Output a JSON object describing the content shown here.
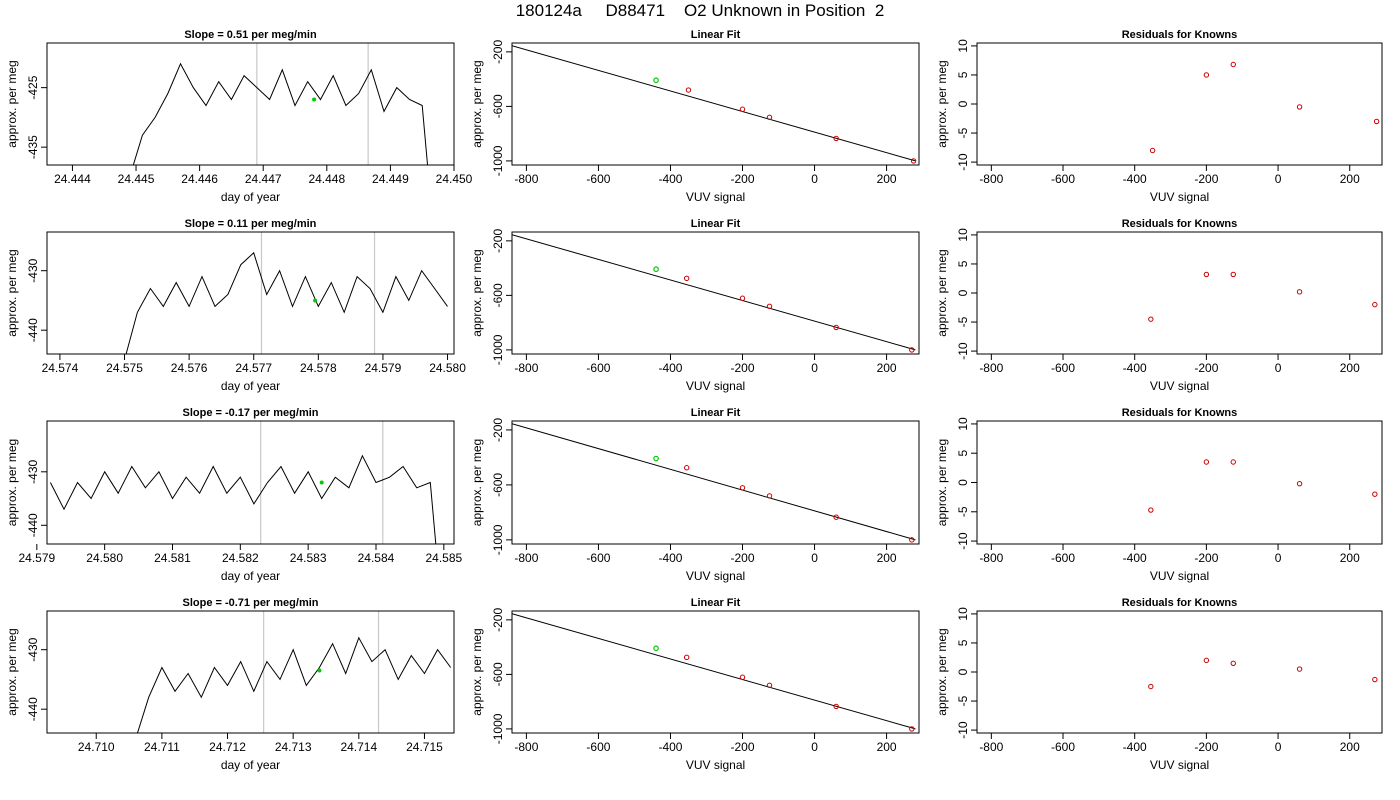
{
  "page": {
    "title": "180124a     D88471    O2 Unknown in Position  2"
  },
  "colors": {
    "line": "#000000",
    "frame": "#000000",
    "vertical_marker": "#c8c8c8",
    "known_points": "#cc0000",
    "unknown_point": "#00cc00"
  },
  "chart_data": [
    {
      "type": "line",
      "title": "Slope =  0.51  per meg/min",
      "xlabel": "day of year",
      "ylabel": "approx. per meg",
      "xlim": [
        24.4436,
        24.45
      ],
      "ylim": [
        -438.0,
        -417.5
      ],
      "xticks": [
        "24.444",
        "24.445",
        "24.446",
        "24.447",
        "24.448",
        "24.449",
        "24.450"
      ],
      "yticks": [
        "-425",
        "-435"
      ],
      "vlines": [
        24.4469,
        24.44865
      ],
      "marker": {
        "x": 24.4478,
        "y": -427
      },
      "x": [
        24.4449,
        24.4451,
        24.4453,
        24.4455,
        24.4457,
        24.4459,
        24.4461,
        24.4463,
        24.4465,
        24.4467,
        24.4469,
        24.4471,
        24.4473,
        24.4475,
        24.4477,
        24.4479,
        24.4481,
        24.4483,
        24.4485,
        24.4487,
        24.4489,
        24.4491,
        24.4493,
        24.4495,
        24.4496
      ],
      "y": [
        -440,
        -433,
        -430,
        -426,
        -421,
        -425,
        -428,
        -424,
        -427,
        -423,
        -425,
        -427,
        -422,
        -428,
        -424,
        -427,
        -423,
        -428,
        -426,
        -422,
        -429,
        -425,
        -427,
        -428,
        -440
      ]
    },
    {
      "type": "scatter-with-fit",
      "title": "Linear Fit",
      "xlabel": "VUV signal",
      "ylabel": "approx. per meg",
      "xlim": [
        -840,
        290
      ],
      "ylim": [
        -1030,
        -135
      ],
      "xticks": [
        -800,
        -600,
        -400,
        -200,
        0,
        200
      ],
      "yticks": [
        -200,
        -600,
        -1000
      ],
      "fit": {
        "x": [
          -840,
          280
        ],
        "y": [
          -155,
          -1000
        ]
      },
      "known_points": [
        {
          "x": -350,
          "y": -480
        },
        {
          "x": -200,
          "y": -621
        },
        {
          "x": -125,
          "y": -680
        },
        {
          "x": 60,
          "y": -835
        },
        {
          "x": 275,
          "y": -1000
        }
      ],
      "unknown_point": {
        "x": -440,
        "y": -408
      }
    },
    {
      "type": "scatter",
      "title": "Residuals for Knowns",
      "xlabel": "VUV signal",
      "ylabel": "approx. per meg",
      "xlim": [
        -840,
        290
      ],
      "ylim": [
        -10.5,
        10.5
      ],
      "xticks": [
        -800,
        -600,
        -400,
        -200,
        0,
        200
      ],
      "yticks": [
        -10,
        -5,
        0,
        5,
        10
      ],
      "points": [
        {
          "x": -350,
          "y": -8
        },
        {
          "x": -200,
          "y": 5
        },
        {
          "x": -125,
          "y": 6.8
        },
        {
          "x": 60,
          "y": -0.5
        },
        {
          "x": 275,
          "y": -3
        }
      ]
    },
    {
      "type": "line",
      "title": "Slope =  0.11  per meg/min",
      "xlabel": "day of year",
      "ylabel": "approx. per meg",
      "xlim": [
        24.5738,
        24.5801
      ],
      "ylim": [
        -444.0,
        -423.5
      ],
      "xticks": [
        "24.574",
        "24.575",
        "24.576",
        "24.577",
        "24.578",
        "24.579",
        "24.580"
      ],
      "yticks": [
        "-430",
        "-440"
      ],
      "vlines": [
        24.57712,
        24.57887
      ],
      "marker": {
        "x": 24.57795,
        "y": -435
      },
      "x": [
        24.575,
        24.5752,
        24.5754,
        24.5756,
        24.5758,
        24.576,
        24.5762,
        24.5764,
        24.5766,
        24.5768,
        24.577,
        24.5772,
        24.5774,
        24.5776,
        24.5778,
        24.578,
        24.5782,
        24.5784,
        24.5786,
        24.5788,
        24.579,
        24.5792,
        24.5794,
        24.5796,
        24.5798,
        24.58
      ],
      "y": [
        -445,
        -437,
        -433,
        -436,
        -432,
        -436,
        -431,
        -436,
        -434,
        -429,
        -427,
        -434,
        -430,
        -436,
        -431,
        -436,
        -432,
        -437,
        -431,
        -433,
        -437,
        -431,
        -435,
        -430,
        -433,
        -436
      ]
    },
    {
      "type": "scatter-with-fit",
      "title": "Linear Fit",
      "xlabel": "VUV signal",
      "ylabel": "approx. per meg",
      "xlim": [
        -840,
        290
      ],
      "ylim": [
        -1030,
        -135
      ],
      "xticks": [
        -800,
        -600,
        -400,
        -200,
        0,
        200
      ],
      "yticks": [
        -200,
        -600,
        -1000
      ],
      "fit": {
        "x": [
          -840,
          280
        ],
        "y": [
          -155,
          -1000
        ]
      },
      "known_points": [
        {
          "x": -355,
          "y": -475
        },
        {
          "x": -200,
          "y": -621
        },
        {
          "x": -125,
          "y": -680
        },
        {
          "x": 60,
          "y": -835
        },
        {
          "x": 270,
          "y": -1000
        }
      ],
      "unknown_point": {
        "x": -440,
        "y": -408
      }
    },
    {
      "type": "scatter",
      "title": "Residuals for Knowns",
      "xlabel": "VUV signal",
      "ylabel": "approx. per meg",
      "xlim": [
        -840,
        290
      ],
      "ylim": [
        -10.5,
        10.5
      ],
      "xticks": [
        -800,
        -600,
        -400,
        -200,
        0,
        200
      ],
      "yticks": [
        -10,
        -5,
        0,
        5,
        10
      ],
      "points": [
        {
          "x": -355,
          "y": -4.5
        },
        {
          "x": -200,
          "y": 3.2
        },
        {
          "x": -125,
          "y": 3.2
        },
        {
          "x": 60,
          "y": 0.2
        },
        {
          "x": 270,
          "y": -2
        }
      ]
    },
    {
      "type": "line",
      "title": "Slope =  -0.17  per meg/min",
      "xlabel": "day of year",
      "ylabel": "approx. per meg",
      "xlim": [
        24.57915,
        24.58515
      ],
      "ylim": [
        -443.5,
        -420.5
      ],
      "xticks": [
        "24.579",
        "24.580",
        "24.581",
        "24.582",
        "24.583",
        "24.584",
        "24.585"
      ],
      "yticks": [
        "-430",
        "-440"
      ],
      "vlines": [
        24.5823,
        24.5841
      ],
      "marker": {
        "x": 24.5832,
        "y": -432
      },
      "x": [
        24.5792,
        24.5794,
        24.5796,
        24.5798,
        24.58,
        24.5802,
        24.5804,
        24.5806,
        24.5808,
        24.581,
        24.5812,
        24.5814,
        24.5816,
        24.5818,
        24.582,
        24.5822,
        24.5824,
        24.5826,
        24.5828,
        24.583,
        24.5832,
        24.5834,
        24.5836,
        24.5838,
        24.584,
        24.5842,
        24.5844,
        24.5846,
        24.5848,
        24.5849
      ],
      "y": [
        -432,
        -437,
        -432,
        -435,
        -430,
        -434,
        -429,
        -433,
        -430,
        -435,
        -431,
        -434,
        -429,
        -434,
        -431,
        -436,
        -432,
        -429,
        -434,
        -430,
        -435,
        -431,
        -433,
        -427,
        -432,
        -431,
        -429,
        -433,
        -432,
        -446
      ]
    },
    {
      "type": "scatter-with-fit",
      "title": "Linear Fit",
      "xlabel": "VUV signal",
      "ylabel": "approx. per meg",
      "xlim": [
        -840,
        290
      ],
      "ylim": [
        -1030,
        -135
      ],
      "xticks": [
        -800,
        -600,
        -400,
        -200,
        0,
        200
      ],
      "yticks": [
        -200,
        -600,
        -1000
      ],
      "fit": {
        "x": [
          -840,
          280
        ],
        "y": [
          -155,
          -1000
        ]
      },
      "known_points": [
        {
          "x": -355,
          "y": -475
        },
        {
          "x": -200,
          "y": -621
        },
        {
          "x": -125,
          "y": -680
        },
        {
          "x": 60,
          "y": -835
        },
        {
          "x": 270,
          "y": -1000
        }
      ],
      "unknown_point": {
        "x": -440,
        "y": -408
      }
    },
    {
      "type": "scatter",
      "title": "Residuals for Knowns",
      "xlabel": "VUV signal",
      "ylabel": "approx. per meg",
      "xlim": [
        -840,
        290
      ],
      "ylim": [
        -10.5,
        10.5
      ],
      "xticks": [
        -800,
        -600,
        -400,
        -200,
        0,
        200
      ],
      "yticks": [
        -10,
        -5,
        0,
        5,
        10
      ],
      "points": [
        {
          "x": -355,
          "y": -4.7
        },
        {
          "x": -200,
          "y": 3.5
        },
        {
          "x": -125,
          "y": 3.5
        },
        {
          "x": 60,
          "y": -0.2
        },
        {
          "x": 270,
          "y": -2
        }
      ]
    },
    {
      "type": "line",
      "title": "Slope =  -0.71  per meg/min",
      "xlabel": "day of year",
      "ylabel": "approx. per meg",
      "xlim": [
        24.70925,
        24.71545
      ],
      "ylim": [
        -444.0,
        -423.5
      ],
      "xticks": [
        "24.710",
        "24.711",
        "24.712",
        "24.713",
        "24.714",
        "24.715"
      ],
      "yticks": [
        "-430",
        "-440"
      ],
      "vlines": [
        24.71255,
        24.7143
      ],
      "marker": {
        "x": 24.7134,
        "y": -433.5
      },
      "x": [
        24.7106,
        24.7108,
        24.711,
        24.7112,
        24.7114,
        24.7116,
        24.7118,
        24.712,
        24.7122,
        24.7124,
        24.7126,
        24.7128,
        24.713,
        24.7132,
        24.7134,
        24.7136,
        24.7138,
        24.714,
        24.7142,
        24.7144,
        24.7146,
        24.7148,
        24.715,
        24.7152,
        24.7154
      ],
      "y": [
        -445,
        -438,
        -433,
        -437,
        -434,
        -438,
        -433,
        -436,
        -432,
        -437,
        -432,
        -435,
        -430,
        -436,
        -433,
        -429,
        -434,
        -428,
        -432,
        -430,
        -435,
        -431,
        -434,
        -430,
        -433
      ]
    },
    {
      "type": "scatter-with-fit",
      "title": "Linear Fit",
      "xlabel": "VUV signal",
      "ylabel": "approx. per meg",
      "xlim": [
        -840,
        290
      ],
      "ylim": [
        -1030,
        -135
      ],
      "xticks": [
        -800,
        -600,
        -400,
        -200,
        0,
        200
      ],
      "yticks": [
        -200,
        -600,
        -1000
      ],
      "fit": {
        "x": [
          -840,
          280
        ],
        "y": [
          -155,
          -1000
        ]
      },
      "known_points": [
        {
          "x": -355,
          "y": -475
        },
        {
          "x": -200,
          "y": -621
        },
        {
          "x": -125,
          "y": -680
        },
        {
          "x": 60,
          "y": -835
        },
        {
          "x": 270,
          "y": -1000
        }
      ],
      "unknown_point": {
        "x": -440,
        "y": -408
      }
    },
    {
      "type": "scatter",
      "title": "Residuals for Knowns",
      "xlabel": "VUV signal",
      "ylabel": "approx. per meg",
      "xlim": [
        -840,
        290
      ],
      "ylim": [
        -10.5,
        10.5
      ],
      "xticks": [
        -800,
        -600,
        -400,
        -200,
        0,
        200
      ],
      "yticks": [
        -10,
        -5,
        0,
        5,
        10
      ],
      "points": [
        {
          "x": -355,
          "y": -2.5
        },
        {
          "x": -200,
          "y": 2
        },
        {
          "x": -125,
          "y": 1.5
        },
        {
          "x": 60,
          "y": 0.5
        },
        {
          "x": 270,
          "y": -1.3
        }
      ]
    }
  ]
}
